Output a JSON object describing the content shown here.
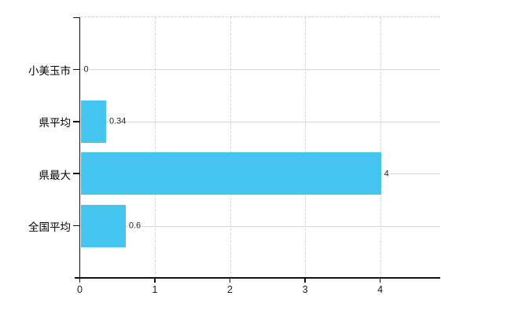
{
  "window": {
    "background": "#ffffff"
  },
  "chart_data": {
    "type": "bar",
    "orientation": "horizontal",
    "title": "",
    "xlabel": "",
    "ylabel": "",
    "categories": [
      "小美玉市",
      "県平均",
      "県最大",
      "全国平均"
    ],
    "values": [
      0,
      0.34,
      4,
      0.6
    ],
    "value_labels": [
      "0",
      "0.34",
      "4",
      "0.6"
    ],
    "x_ticks": [
      0,
      1,
      2,
      3,
      4
    ],
    "x_tick_labels": [
      "0",
      "1",
      "2",
      "3",
      "4"
    ],
    "xlim": [
      0,
      4.8
    ],
    "grid": true,
    "legend_position": "none",
    "bar_color": "#45C4F0",
    "grid_color": "#D6D6D6",
    "axis_color": "#111111",
    "value_label_color": "#222222",
    "category_label_color": "#000000"
  }
}
